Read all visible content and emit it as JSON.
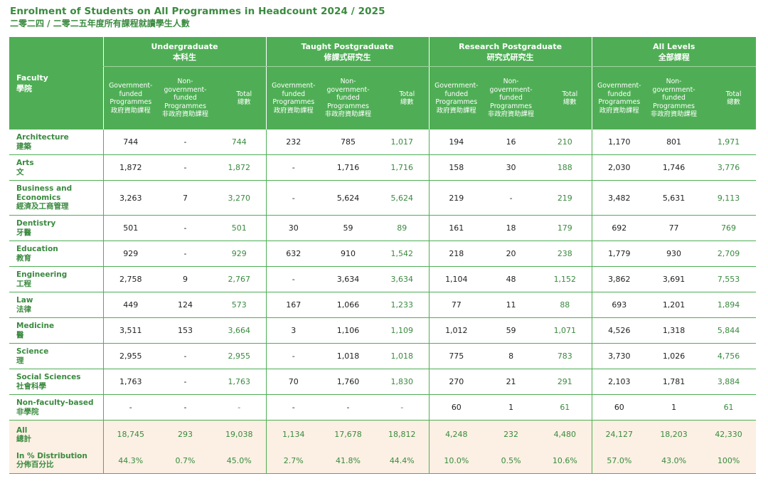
{
  "title": {
    "en": "Enrolment of Students on All Programmes in Headcount 2024 / 2025",
    "zh": "二零二四 / 二零二五年度所有課程就讀學生人數"
  },
  "header": {
    "faculty": {
      "en": "Faculty",
      "zh": "學院"
    },
    "groups": [
      {
        "en": "Undergraduate",
        "zh": "本科生"
      },
      {
        "en": "Taught Postgraduate",
        "zh": "修課式研究生"
      },
      {
        "en": "Research Postgraduate",
        "zh": "研究式研究生"
      },
      {
        "en": "All Levels",
        "zh": "全部課程"
      }
    ],
    "sub": {
      "gov": {
        "en": "Government-funded Programmes",
        "zh": "政府資助課程"
      },
      "nongov": {
        "en": "Non-government-funded Programmes",
        "zh": "非政府資助課程"
      },
      "total": {
        "en": "Total",
        "zh": "總數"
      }
    }
  },
  "rows": [
    {
      "en": "Architecture",
      "zh": "建築",
      "v": [
        "744",
        "-",
        "744",
        "232",
        "785",
        "1,017",
        "194",
        "16",
        "210",
        "1,170",
        "801",
        "1,971"
      ]
    },
    {
      "en": "Arts",
      "zh": "文",
      "v": [
        "1,872",
        "-",
        "1,872",
        "-",
        "1,716",
        "1,716",
        "158",
        "30",
        "188",
        "2,030",
        "1,746",
        "3,776"
      ]
    },
    {
      "en": "Business and Economics",
      "zh": "經濟及工商管理",
      "v": [
        "3,263",
        "7",
        "3,270",
        "-",
        "5,624",
        "5,624",
        "219",
        "-",
        "219",
        "3,482",
        "5,631",
        "9,113"
      ]
    },
    {
      "en": "Dentistry",
      "zh": "牙醫",
      "v": [
        "501",
        "-",
        "501",
        "30",
        "59",
        "89",
        "161",
        "18",
        "179",
        "692",
        "77",
        "769"
      ]
    },
    {
      "en": "Education",
      "zh": "教育",
      "v": [
        "929",
        "-",
        "929",
        "632",
        "910",
        "1,542",
        "218",
        "20",
        "238",
        "1,779",
        "930",
        "2,709"
      ]
    },
    {
      "en": "Engineering",
      "zh": "工程",
      "v": [
        "2,758",
        "9",
        "2,767",
        "-",
        "3,634",
        "3,634",
        "1,104",
        "48",
        "1,152",
        "3,862",
        "3,691",
        "7,553"
      ]
    },
    {
      "en": "Law",
      "zh": "法律",
      "v": [
        "449",
        "124",
        "573",
        "167",
        "1,066",
        "1,233",
        "77",
        "11",
        "88",
        "693",
        "1,201",
        "1,894"
      ]
    },
    {
      "en": "Medicine",
      "zh": "醫",
      "v": [
        "3,511",
        "153",
        "3,664",
        "3",
        "1,106",
        "1,109",
        "1,012",
        "59",
        "1,071",
        "4,526",
        "1,318",
        "5,844"
      ]
    },
    {
      "en": "Science",
      "zh": "理",
      "v": [
        "2,955",
        "-",
        "2,955",
        "-",
        "1,018",
        "1,018",
        "775",
        "8",
        "783",
        "3,730",
        "1,026",
        "4,756"
      ]
    },
    {
      "en": "Social Sciences",
      "zh": "社會科學",
      "v": [
        "1,763",
        "-",
        "1,763",
        "70",
        "1,760",
        "1,830",
        "270",
        "21",
        "291",
        "2,103",
        "1,781",
        "3,884"
      ]
    },
    {
      "en": "Non-faculty-based",
      "zh": "非學院",
      "v": [
        "-",
        "-",
        "-",
        "-",
        "-",
        "-",
        "60",
        "1",
        "61",
        "60",
        "1",
        "61"
      ]
    }
  ],
  "summary": [
    {
      "en": "All",
      "zh": "總計",
      "v": [
        "18,745",
        "293",
        "19,038",
        "1,134",
        "17,678",
        "18,812",
        "4,248",
        "232",
        "4,480",
        "24,127",
        "18,203",
        "42,330"
      ]
    },
    {
      "en": "In % Distribution",
      "zh": "分佈百分比",
      "v": [
        "44.3%",
        "0.7%",
        "45.0%",
        "2.7%",
        "41.8%",
        "44.4%",
        "10.0%",
        "0.5%",
        "10.6%",
        "57.0%",
        "43.0%",
        "100%"
      ]
    }
  ]
}
